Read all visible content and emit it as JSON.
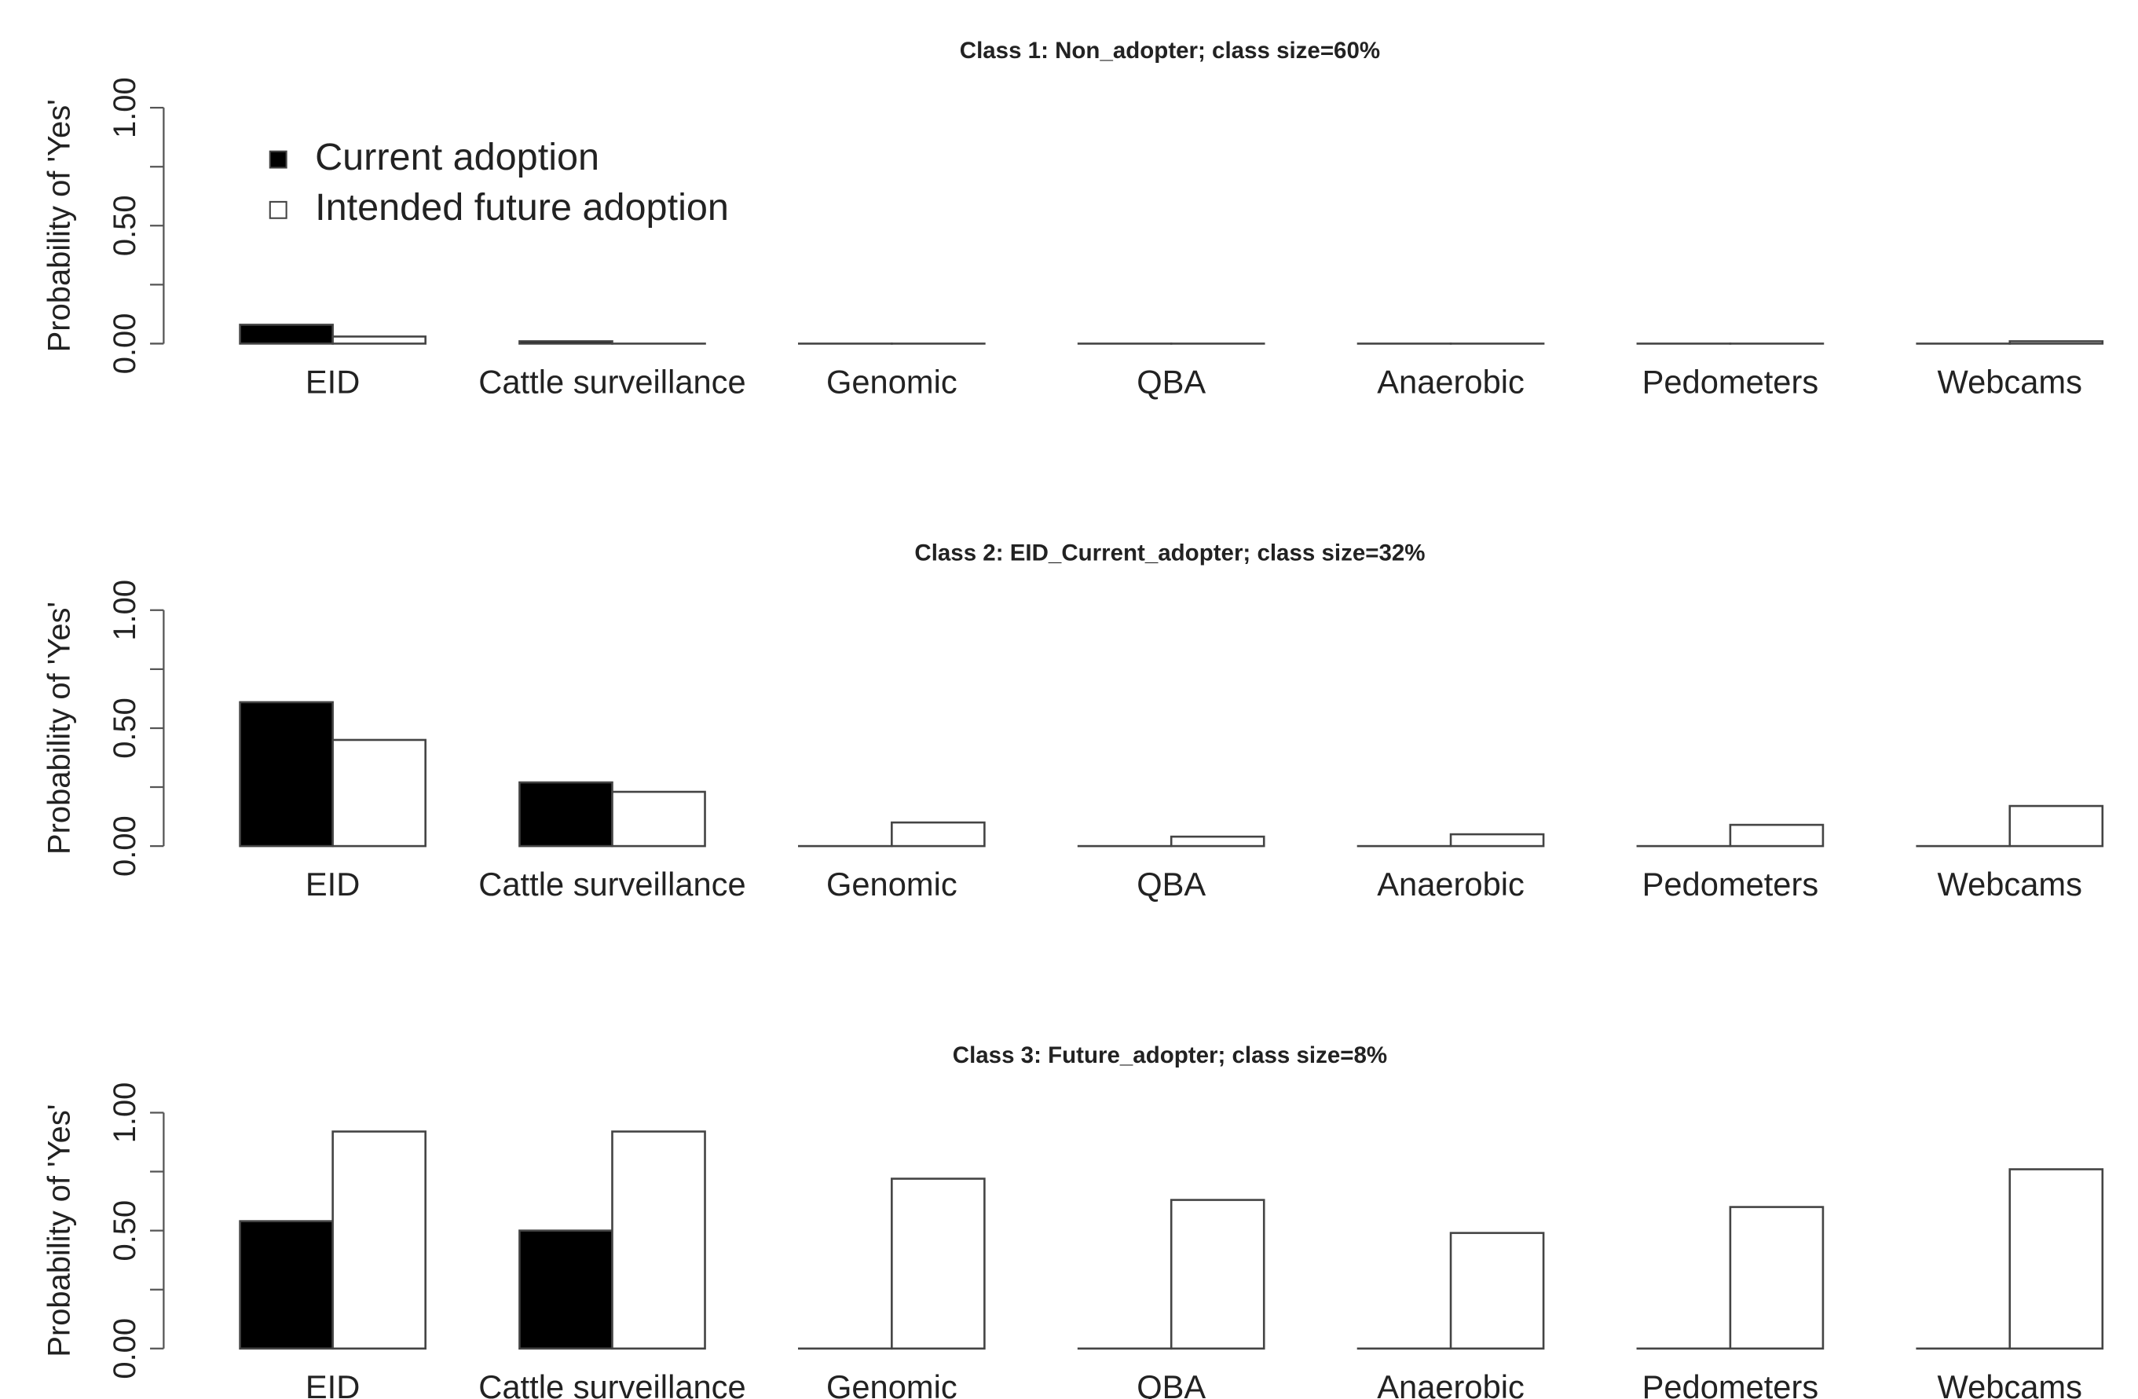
{
  "chart_data": [
    {
      "type": "bar",
      "title": "Class 1: Non_adopter; class size=60%",
      "y_label": "Probability of 'Yes'",
      "categories": [
        "EID",
        "Cattle surveillance",
        "Genomic",
        "QBA",
        "Anaerobic",
        "Pedometers",
        "Webcams"
      ],
      "series": [
        {
          "name": "Current adoption",
          "color": "#000000",
          "values": [
            0.08,
            0.01,
            0,
            0,
            0,
            0,
            0
          ]
        },
        {
          "name": "Intended future adoption",
          "color": "#ffffff",
          "values": [
            0.03,
            0,
            0,
            0,
            0,
            0,
            0.01
          ]
        }
      ],
      "ylim": [
        0,
        1
      ],
      "yticks": [
        {
          "value": 0,
          "label": "0.00"
        },
        {
          "value": 0.25,
          "label": null
        },
        {
          "value": 0.5,
          "label": "0.50"
        },
        {
          "value": 0.75,
          "label": null
        },
        {
          "value": 1,
          "label": "1.00"
        }
      ],
      "legend": "upper left"
    },
    {
      "type": "bar",
      "title": "Class 2: EID_Current_adopter; class size=32%",
      "y_label": "Probability of 'Yes'",
      "categories": [
        "EID",
        "Cattle surveillance",
        "Genomic",
        "QBA",
        "Anaerobic",
        "Pedometers",
        "Webcams"
      ],
      "series": [
        {
          "name": "Current adoption",
          "color": "#000000",
          "values": [
            0.61,
            0.27,
            0,
            0,
            0,
            0,
            0
          ]
        },
        {
          "name": "Intended future adoption",
          "color": "#ffffff",
          "values": [
            0.45,
            0.23,
            0.1,
            0.04,
            0.05,
            0.09,
            0.17
          ]
        }
      ],
      "ylim": [
        0,
        1
      ],
      "yticks": [
        {
          "value": 0,
          "label": "0.00"
        },
        {
          "value": 0.25,
          "label": null
        },
        {
          "value": 0.5,
          "label": "0.50"
        },
        {
          "value": 0.75,
          "label": null
        },
        {
          "value": 1,
          "label": "1.00"
        }
      ]
    },
    {
      "type": "bar",
      "title": "Class 3: Future_adopter; class size=8%",
      "y_label": "Probability of 'Yes'",
      "categories": [
        "EID",
        "Cattle surveillance",
        "Genomic",
        "QBA",
        "Anaerobic",
        "Pedometers",
        "Webcams"
      ],
      "series": [
        {
          "name": "Current adoption",
          "color": "#000000",
          "values": [
            0.54,
            0.5,
            0,
            0,
            0,
            0,
            0
          ]
        },
        {
          "name": "Intended future adoption",
          "color": "#ffffff",
          "values": [
            0.92,
            0.92,
            0.72,
            0.63,
            0.49,
            0.6,
            0.76
          ]
        }
      ],
      "ylim": [
        0,
        1
      ],
      "yticks": [
        {
          "value": 0,
          "label": "0.00"
        },
        {
          "value": 0.25,
          "label": null
        },
        {
          "value": 0.5,
          "label": "0.50"
        },
        {
          "value": 0.75,
          "label": null
        },
        {
          "value": 1,
          "label": "1.00"
        }
      ]
    }
  ]
}
